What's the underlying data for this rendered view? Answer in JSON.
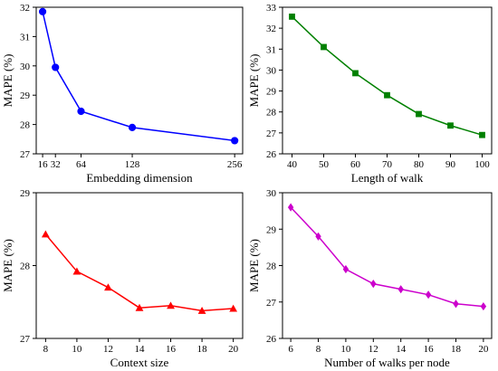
{
  "chart_data": [
    {
      "type": "line",
      "xlabel": "Embedding dimension",
      "ylabel": "MAPE (%)",
      "x": [
        16,
        32,
        64,
        128,
        256
      ],
      "xticks": [
        16,
        32,
        64,
        128,
        256
      ],
      "yticks": [
        27,
        28,
        29,
        30,
        31,
        32
      ],
      "xlim": [
        8,
        266
      ],
      "ylim": [
        27,
        32
      ],
      "series": [
        {
          "values": [
            31.85,
            29.95,
            28.45,
            27.9,
            27.45
          ]
        }
      ],
      "color": "#0000ff",
      "marker": "circle"
    },
    {
      "type": "line",
      "xlabel": "Length of walk",
      "ylabel": "MAPE (%)",
      "x": [
        40,
        50,
        60,
        70,
        80,
        90,
        100
      ],
      "xticks": [
        40,
        50,
        60,
        70,
        80,
        90,
        100
      ],
      "yticks": [
        26,
        27,
        28,
        29,
        30,
        31,
        32,
        33
      ],
      "xlim": [
        37,
        103
      ],
      "ylim": [
        26,
        33
      ],
      "series": [
        {
          "values": [
            32.55,
            31.1,
            29.85,
            28.8,
            27.9,
            27.35,
            26.9
          ]
        }
      ],
      "color": "#008000",
      "marker": "square"
    },
    {
      "type": "line",
      "xlabel": "Context size",
      "ylabel": "MAPE (%)",
      "x": [
        8,
        10,
        12,
        14,
        16,
        18,
        20
      ],
      "xticks": [
        8,
        10,
        12,
        14,
        16,
        18,
        20
      ],
      "yticks": [
        27,
        28,
        29
      ],
      "xlim": [
        7.4,
        20.6
      ],
      "ylim": [
        27,
        29
      ],
      "series": [
        {
          "values": [
            28.43,
            27.92,
            27.7,
            27.42,
            27.45,
            27.38,
            27.41
          ]
        }
      ],
      "color": "#ff0000",
      "marker": "triangle"
    },
    {
      "type": "line",
      "xlabel": "Number of walks per node",
      "ylabel": "MAPE (%)",
      "x": [
        6,
        8,
        10,
        12,
        14,
        16,
        18,
        20
      ],
      "xticks": [
        6,
        8,
        10,
        12,
        14,
        16,
        18,
        20
      ],
      "yticks": [
        26,
        27,
        28,
        29,
        30
      ],
      "xlim": [
        5.4,
        20.6
      ],
      "ylim": [
        26,
        30
      ],
      "series": [
        {
          "values": [
            29.6,
            28.8,
            27.9,
            27.5,
            27.35,
            27.2,
            26.95,
            26.88
          ]
        }
      ],
      "color": "#cc00cc",
      "marker": "diamond"
    }
  ]
}
